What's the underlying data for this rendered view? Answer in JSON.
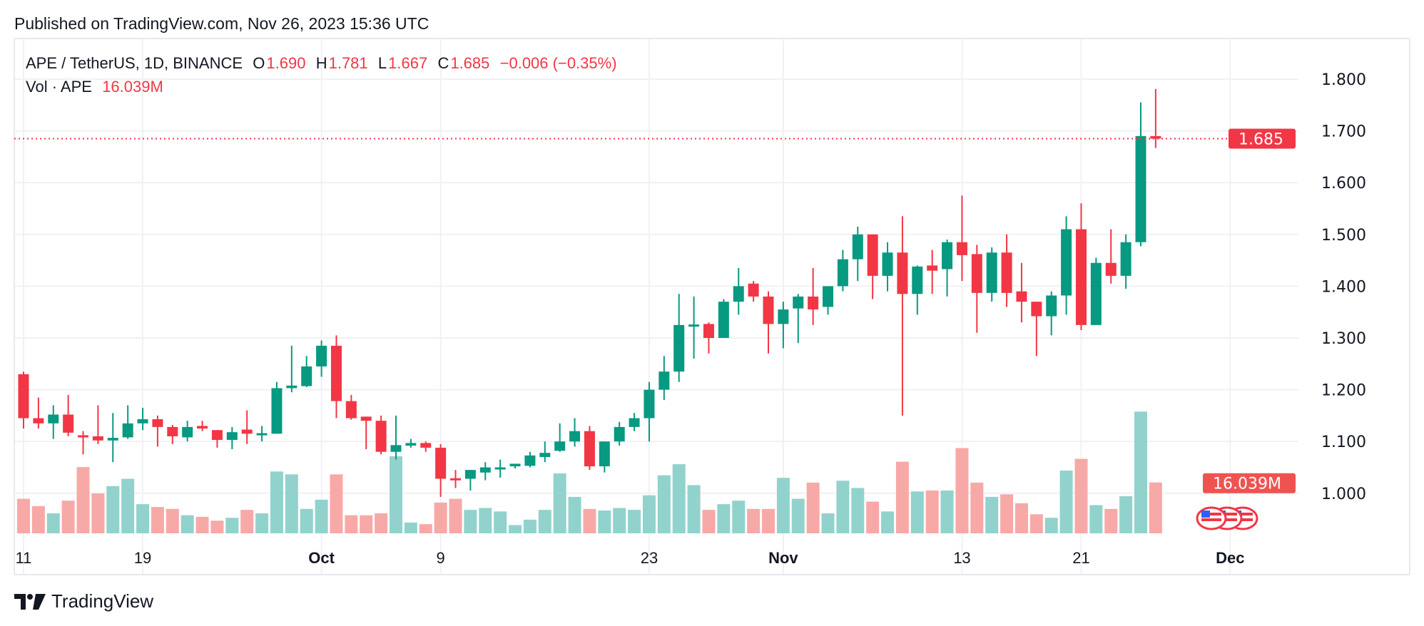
{
  "header": {
    "published": "Published on TradingView.com, Nov 26, 2023 15:36 UTC"
  },
  "legend": {
    "symbol": "APE / TetherUS, 1D, BINANCE",
    "o_label": "O",
    "o": "1.690",
    "h_label": "H",
    "h": "1.781",
    "l_label": "L",
    "l": "1.667",
    "c_label": "C",
    "c": "1.685",
    "change": "−0.006 (−0.35%)",
    "vol_label": "Vol · APE",
    "vol": "16.039M"
  },
  "footer": {
    "brand": "TradingView"
  },
  "colors": {
    "up": "#089981",
    "down": "#f23645",
    "up_volume": "#92d2cc",
    "down_volume": "#f7a9a7"
  },
  "icons": {
    "logo": "tradingview-logo-icon",
    "events": "us-flag-event-icon"
  },
  "chart_data": {
    "type": "candlestick",
    "title": "",
    "ylim": [
      0.95,
      1.85
    ],
    "y_ticks": [
      "1.800",
      "1.700",
      "1.600",
      "1.500",
      "1.400",
      "1.300",
      "1.200",
      "1.100",
      "1.000"
    ],
    "x_ticks": [
      {
        "label": "11",
        "index": 0,
        "bold": false
      },
      {
        "label": "19",
        "index": 8,
        "bold": false
      },
      {
        "label": "Oct",
        "index": 20,
        "bold": true
      },
      {
        "label": "9",
        "index": 28,
        "bold": false
      },
      {
        "label": "23",
        "index": 42,
        "bold": false
      },
      {
        "label": "Nov",
        "index": 51,
        "bold": true
      },
      {
        "label": "13",
        "index": 63,
        "bold": false
      },
      {
        "label": "21",
        "index": 71,
        "bold": false
      },
      {
        "label": "Dec",
        "index": 81,
        "bold": true
      }
    ],
    "last_price_label": "1.685",
    "last_volume_label": "16.039M",
    "grid": true,
    "ohlc": [
      [
        1.23,
        1.235,
        1.125,
        1.145
      ],
      [
        1.145,
        1.185,
        1.125,
        1.135
      ],
      [
        1.135,
        1.17,
        1.105,
        1.152
      ],
      [
        1.152,
        1.19,
        1.11,
        1.117
      ],
      [
        1.112,
        1.12,
        1.075,
        1.108
      ],
      [
        1.11,
        1.17,
        1.095,
        1.102
      ],
      [
        1.102,
        1.155,
        1.06,
        1.107
      ],
      [
        1.108,
        1.17,
        1.105,
        1.135
      ],
      [
        1.135,
        1.165,
        1.122,
        1.143
      ],
      [
        1.143,
        1.15,
        1.09,
        1.128
      ],
      [
        1.128,
        1.132,
        1.095,
        1.11
      ],
      [
        1.108,
        1.14,
        1.1,
        1.128
      ],
      [
        1.13,
        1.14,
        1.12,
        1.125
      ],
      [
        1.122,
        1.122,
        1.088,
        1.103
      ],
      [
        1.103,
        1.128,
        1.085,
        1.118
      ],
      [
        1.123,
        1.16,
        1.095,
        1.115
      ],
      [
        1.115,
        1.13,
        1.1,
        1.116
      ],
      [
        1.115,
        1.215,
        1.115,
        1.203
      ],
      [
        1.203,
        1.285,
        1.195,
        1.208
      ],
      [
        1.207,
        1.265,
        1.205,
        1.245
      ],
      [
        1.245,
        1.295,
        1.225,
        1.285
      ],
      [
        1.285,
        1.305,
        1.145,
        1.178
      ],
      [
        1.178,
        1.19,
        1.142,
        1.145
      ],
      [
        1.148,
        1.148,
        1.085,
        1.14
      ],
      [
        1.14,
        1.15,
        1.075,
        1.08
      ],
      [
        1.08,
        1.15,
        1.065,
        1.093
      ],
      [
        1.092,
        1.105,
        1.088,
        1.097
      ],
      [
        1.097,
        1.1,
        1.08,
        1.088
      ],
      [
        1.088,
        1.095,
        0.993,
        1.028
      ],
      [
        1.029,
        1.045,
        1.01,
        1.028
      ],
      [
        1.028,
        1.045,
        1.005,
        1.045
      ],
      [
        1.04,
        1.06,
        1.025,
        1.05
      ],
      [
        1.048,
        1.065,
        1.03,
        1.05
      ],
      [
        1.052,
        1.057,
        1.048,
        1.057
      ],
      [
        1.053,
        1.08,
        1.05,
        1.073
      ],
      [
        1.07,
        1.1,
        1.06,
        1.078
      ],
      [
        1.082,
        1.135,
        1.08,
        1.1
      ],
      [
        1.1,
        1.145,
        1.09,
        1.12
      ],
      [
        1.12,
        1.13,
        1.045,
        1.052
      ],
      [
        1.052,
        1.1,
        1.04,
        1.1
      ],
      [
        1.1,
        1.138,
        1.092,
        1.128
      ],
      [
        1.128,
        1.155,
        1.12,
        1.145
      ],
      [
        1.145,
        1.215,
        1.1,
        1.2
      ],
      [
        1.2,
        1.265,
        1.18,
        1.235
      ],
      [
        1.235,
        1.385,
        1.215,
        1.325
      ],
      [
        1.325,
        1.38,
        1.26,
        1.326
      ],
      [
        1.327,
        1.33,
        1.27,
        1.3
      ],
      [
        1.3,
        1.375,
        1.3,
        1.37
      ],
      [
        1.37,
        1.435,
        1.345,
        1.4
      ],
      [
        1.405,
        1.41,
        1.37,
        1.38
      ],
      [
        1.38,
        1.39,
        1.27,
        1.327
      ],
      [
        1.327,
        1.37,
        1.28,
        1.355
      ],
      [
        1.357,
        1.385,
        1.29,
        1.38
      ],
      [
        1.38,
        1.435,
        1.325,
        1.355
      ],
      [
        1.36,
        1.4,
        1.345,
        1.4
      ],
      [
        1.4,
        1.47,
        1.39,
        1.452
      ],
      [
        1.452,
        1.515,
        1.41,
        1.5
      ],
      [
        1.5,
        1.5,
        1.375,
        1.42
      ],
      [
        1.42,
        1.485,
        1.39,
        1.465
      ],
      [
        1.465,
        1.535,
        1.15,
        1.385
      ],
      [
        1.385,
        1.44,
        1.345,
        1.438
      ],
      [
        1.44,
        1.47,
        1.385,
        1.43
      ],
      [
        1.433,
        1.49,
        1.38,
        1.485
      ],
      [
        1.485,
        1.575,
        1.41,
        1.46
      ],
      [
        1.462,
        1.48,
        1.31,
        1.387
      ],
      [
        1.387,
        1.475,
        1.37,
        1.465
      ],
      [
        1.465,
        1.5,
        1.36,
        1.387
      ],
      [
        1.39,
        1.445,
        1.33,
        1.37
      ],
      [
        1.37,
        1.37,
        1.265,
        1.342
      ],
      [
        1.342,
        1.39,
        1.305,
        1.382
      ],
      [
        1.382,
        1.535,
        1.345,
        1.51
      ],
      [
        1.51,
        1.56,
        1.315,
        1.325
      ],
      [
        1.325,
        1.455,
        1.325,
        1.445
      ],
      [
        1.445,
        1.51,
        1.405,
        1.42
      ],
      [
        1.42,
        1.5,
        1.395,
        1.485
      ],
      [
        1.485,
        1.755,
        1.477,
        1.69
      ],
      [
        1.69,
        1.781,
        1.667,
        1.685
      ]
    ],
    "volume_millions": [
      10.9,
      8.6,
      6.3,
      10.3,
      20.9,
      12.6,
      14.9,
      17.2,
      9.2,
      8.3,
      7.7,
      5.7,
      5.2,
      4.0,
      4.9,
      7.4,
      6.3,
      19.5,
      18.6,
      7.7,
      10.6,
      18.6,
      5.7,
      5.7,
      6.3,
      24.3,
      3.4,
      2.9,
      9.7,
      10.9,
      7.4,
      8.0,
      6.9,
      2.6,
      4.3,
      7.4,
      18.9,
      11.5,
      7.7,
      7.2,
      8.0,
      7.4,
      12.0,
      18.3,
      21.8,
      15.2,
      7.4,
      9.2,
      10.3,
      7.7,
      7.7,
      17.5,
      10.9,
      16.0,
      6.3,
      16.6,
      14.3,
      10.0,
      6.9,
      22.6,
      13.2,
      13.5,
      13.5,
      26.9,
      16.0,
      11.5,
      12.3,
      9.5,
      6.0,
      4.9,
      19.8,
      23.5,
      8.9,
      7.7,
      11.7,
      38.4,
      16.039
    ]
  }
}
